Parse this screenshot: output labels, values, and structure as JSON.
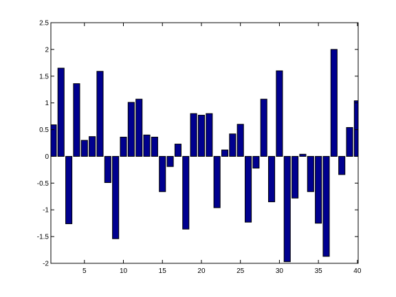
{
  "chart_data": {
    "type": "bar",
    "x": [
      1,
      2,
      3,
      4,
      5,
      6,
      7,
      8,
      9,
      10,
      11,
      12,
      13,
      14,
      15,
      16,
      17,
      18,
      19,
      20,
      21,
      22,
      23,
      24,
      25,
      26,
      27,
      28,
      29,
      30,
      31,
      32,
      33,
      34,
      35,
      36,
      37,
      38,
      39,
      40
    ],
    "values": [
      0.59,
      1.65,
      -1.26,
      1.36,
      0.3,
      0.37,
      1.59,
      -0.49,
      -1.54,
      0.36,
      1.01,
      1.07,
      0.4,
      0.36,
      -0.66,
      -0.19,
      0.23,
      -1.36,
      0.8,
      0.77,
      0.8,
      -0.96,
      0.12,
      0.42,
      0.6,
      -1.23,
      -0.22,
      1.07,
      -0.85,
      1.6,
      -1.97,
      -0.78,
      0.04,
      -0.66,
      -1.25,
      -1.87,
      2.0,
      -0.34,
      0.54,
      1.04
    ],
    "color": "#00008f",
    "xlim": [
      0.7,
      40.1
    ],
    "xticks": [
      5,
      10,
      15,
      20,
      25,
      30,
      35,
      40
    ],
    "ylim": [
      -2,
      2.5
    ],
    "yticks": [
      -2,
      -1.5,
      -1,
      -0.5,
      0,
      0.5,
      1,
      1.5,
      2,
      2.5
    ],
    "grid": false
  }
}
